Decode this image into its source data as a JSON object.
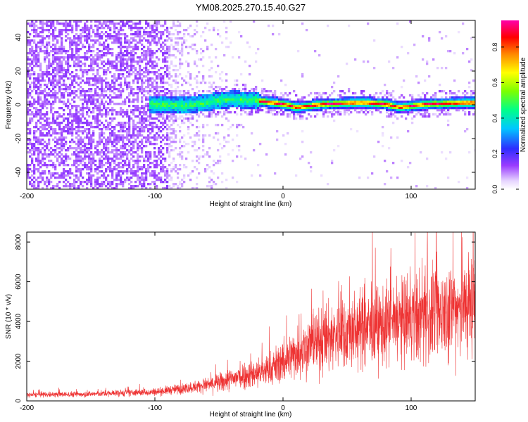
{
  "figure": {
    "title": "YM08.2025.270.15.40.G27"
  },
  "chart_data": [
    {
      "type": "heatmap",
      "title": "",
      "xlabel": "Height of straight line (km)",
      "ylabel": "Frequency (Hz)",
      "xlim": [
        -200,
        150
      ],
      "ylim": [
        -50,
        50
      ],
      "x_ticks": [
        -200,
        -100,
        0,
        100
      ],
      "y_ticks": [
        -40,
        -20,
        0,
        20,
        40
      ],
      "grid": false,
      "colorbar": {
        "label": "Normalized spectral amplitude",
        "range": [
          0,
          0.95
        ],
        "ticks": [
          0.0,
          0.2,
          0.4,
          0.6,
          0.8
        ],
        "colormap": [
          "#ffffff",
          "#e6d4ff",
          "#7d00ff",
          "#2d2dff",
          "#00c8ff",
          "#00ff88",
          "#7cff00",
          "#ffff00",
          "#ff8800",
          "#ff0000",
          "#ff00aa"
        ]
      },
      "band_center_hz": [
        {
          "x": -100,
          "y": 1
        },
        {
          "x": -80,
          "y": 0
        },
        {
          "x": -60,
          "y": 2
        },
        {
          "x": -40,
          "y": 4
        },
        {
          "x": -20,
          "y": 3
        },
        {
          "x": 0,
          "y": 1
        },
        {
          "x": 10,
          "y": -1
        },
        {
          "x": 30,
          "y": 1
        },
        {
          "x": 60,
          "y": 2
        },
        {
          "x": 80,
          "y": 1
        },
        {
          "x": 90,
          "y": -1
        },
        {
          "x": 110,
          "y": 1
        },
        {
          "x": 150,
          "y": 2
        }
      ]
    },
    {
      "type": "line",
      "title": "",
      "xlabel": "Height of straight line (km)",
      "ylabel": "SNR (10 * v/v)",
      "xlim": [
        -200,
        150
      ],
      "ylim": [
        0,
        8500
      ],
      "x_ticks": [
        -200,
        -100,
        0,
        100
      ],
      "y_ticks": [
        0,
        2000,
        4000,
        6000,
        8000
      ],
      "grid": false,
      "series": [
        {
          "color": "#ee3333",
          "x": [
            -200,
            -150,
            -100,
            -75,
            -50,
            -40,
            -30,
            -20,
            -10,
            0,
            20,
            40,
            60,
            80,
            100,
            120,
            140,
            150
          ],
          "y": [
            300,
            350,
            450,
            650,
            900,
            1100,
            1300,
            1400,
            1600,
            2000,
            2800,
            3300,
            3600,
            3800,
            4100,
            4400,
            4800,
            5000
          ]
        }
      ]
    }
  ]
}
